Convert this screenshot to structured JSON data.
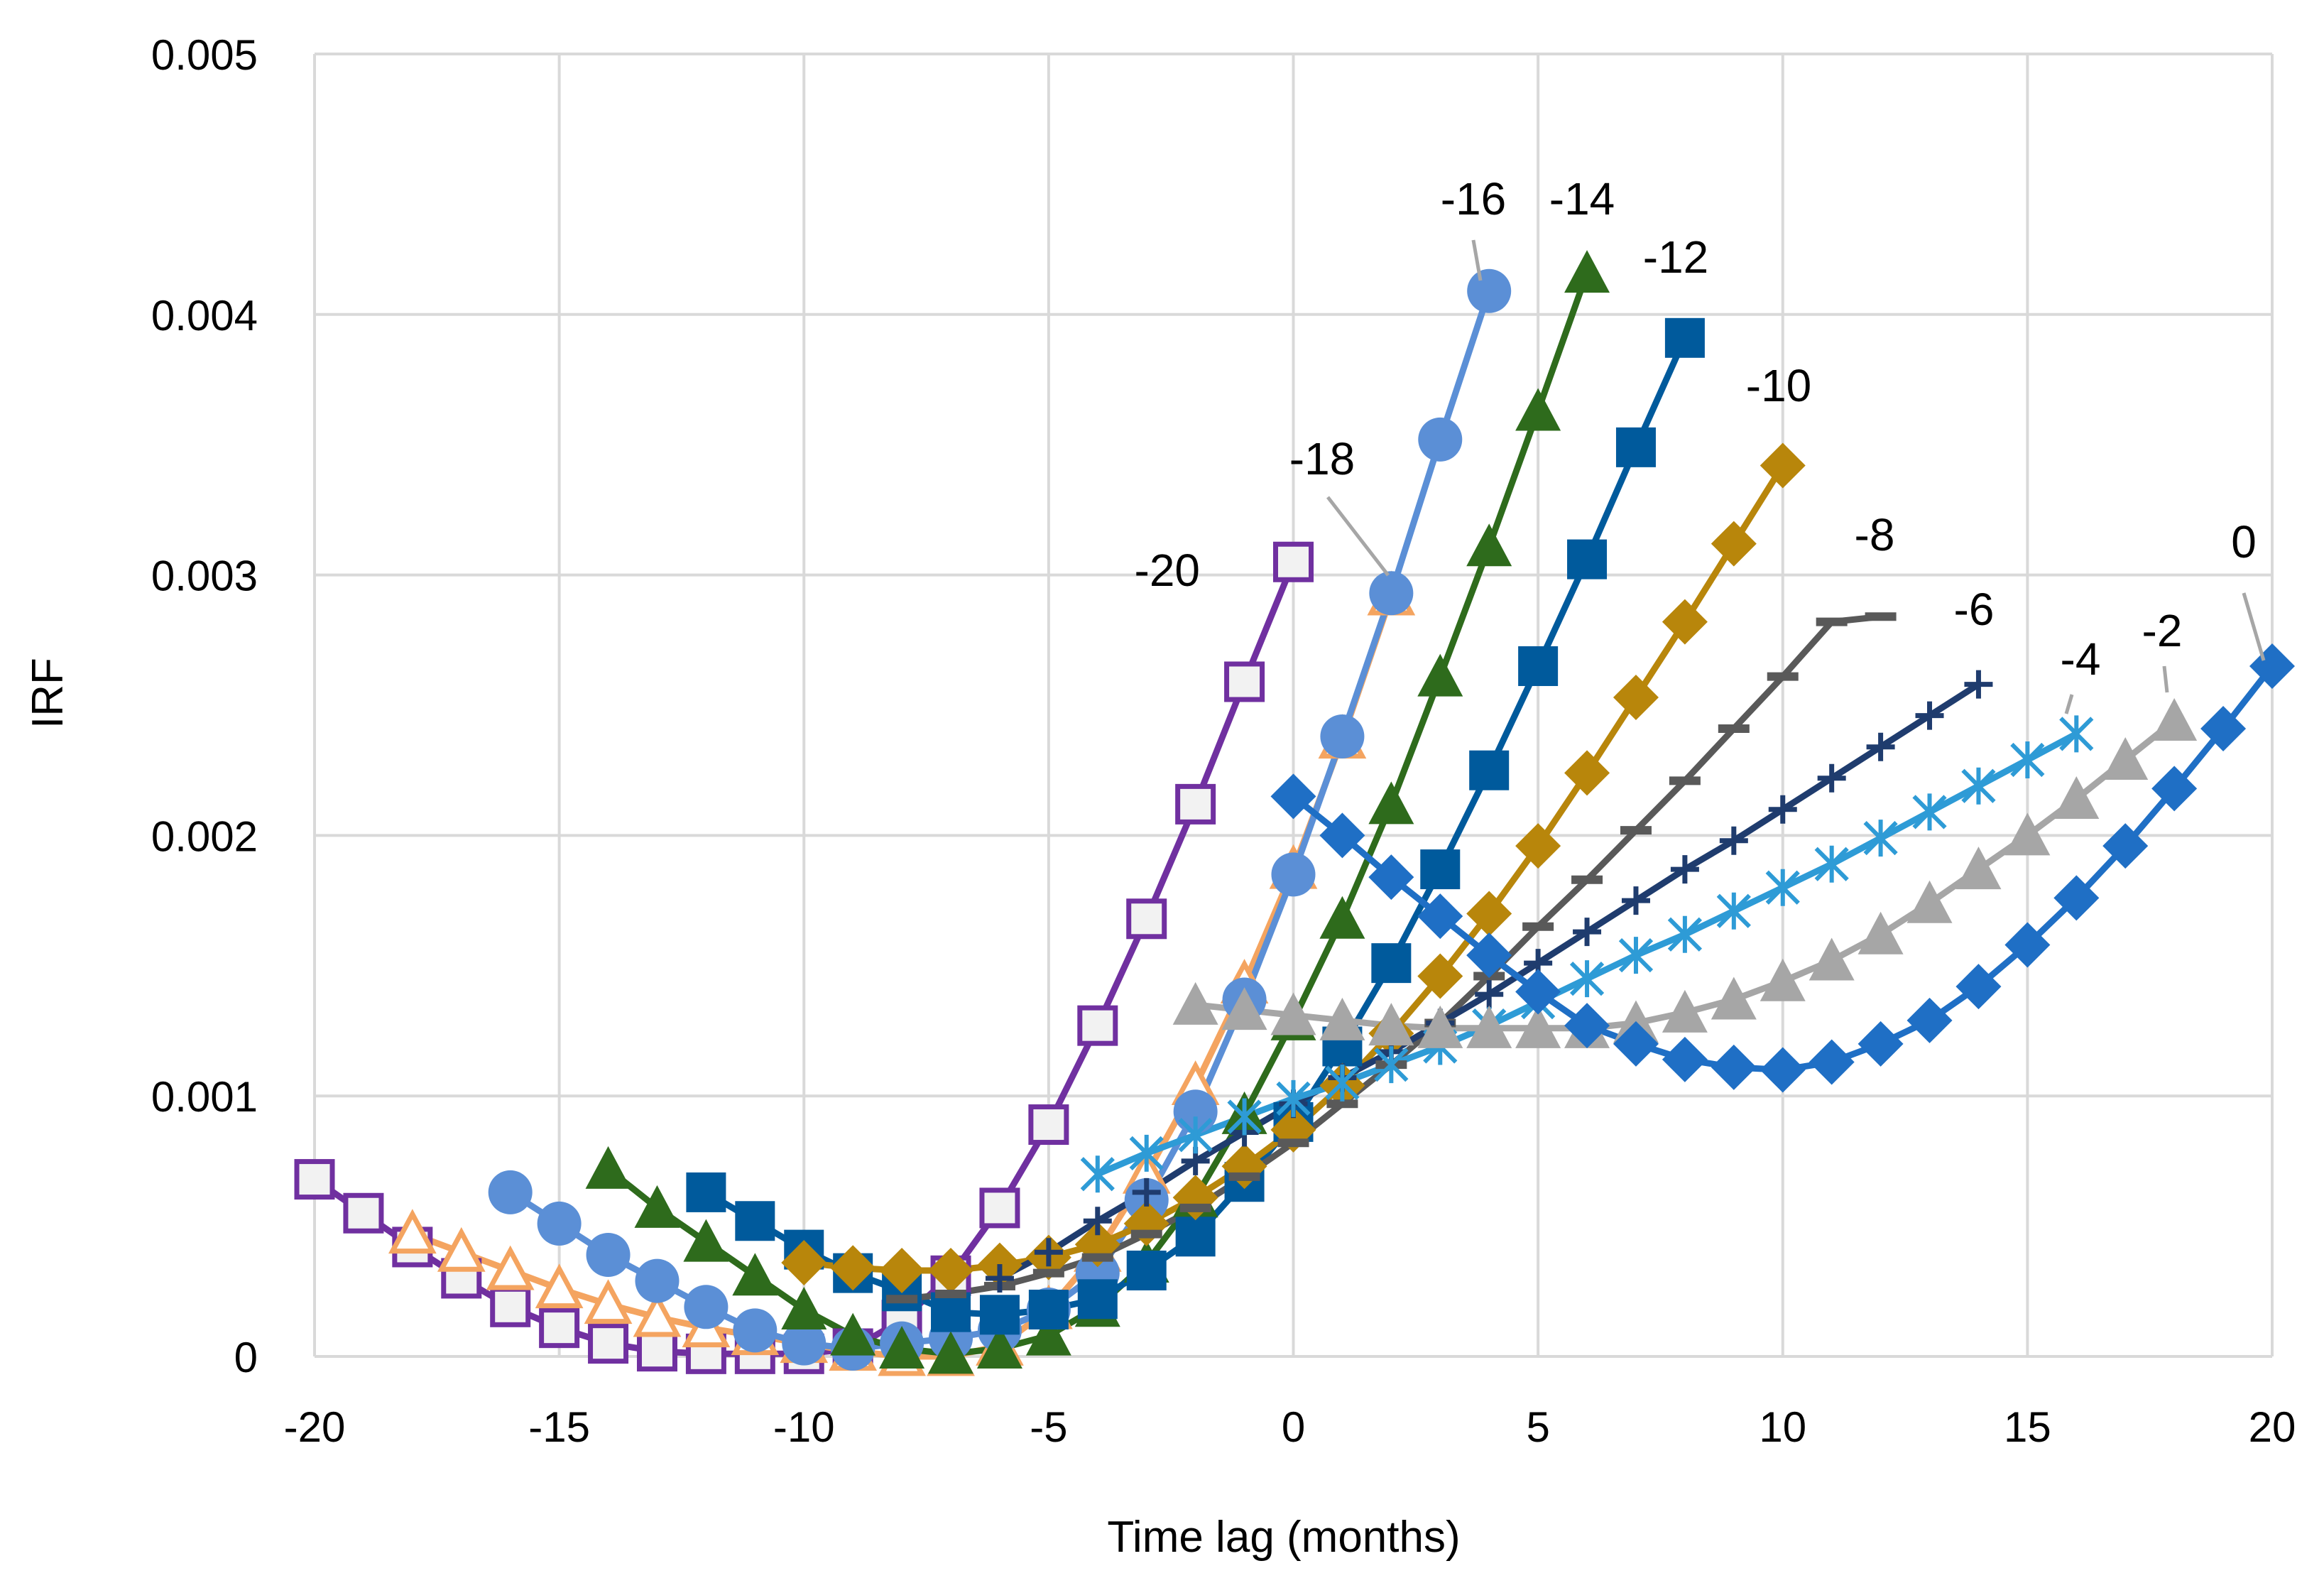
{
  "chart_data": {
    "type": "line",
    "xlabel": "Time lag (months)",
    "ylabel": "IRF",
    "xlim": [
      -20,
      20
    ],
    "ylim": [
      0,
      0.005
    ],
    "xticks": [
      "-20",
      "-15",
      "-10",
      "-5",
      "0",
      "5",
      "10",
      "15",
      "20"
    ],
    "yticks": [
      "0",
      "0.001",
      "0.002",
      "0.003",
      "0.004",
      "0.005"
    ],
    "grid": true,
    "series": [
      {
        "name": "-20",
        "color": "#7030a0",
        "marker": "square-open",
        "x": [
          -20,
          -19,
          -18,
          -17,
          -16,
          -15,
          -14,
          -13,
          -12,
          -11,
          -10,
          -9,
          -8,
          -7,
          -6,
          -5,
          -4,
          -3,
          -2,
          -1,
          0
        ],
        "y": [
          0.00068,
          0.00055,
          0.00042,
          0.0003,
          0.00019,
          0.00011,
          5e-05,
          2e-05,
          1e-05,
          1e-05,
          1e-05,
          3e-05,
          0.00014,
          0.00031,
          0.00057,
          0.00089,
          0.00127,
          0.00168,
          0.00212,
          0.00259,
          0.00305
        ]
      },
      {
        "name": "-18",
        "color": "#f4a460",
        "marker": "triangle-open",
        "x": [
          -18,
          -17,
          -16,
          -15,
          -14,
          -13,
          -12,
          -11,
          -10,
          -9,
          -8,
          -7,
          -6,
          -5,
          -4,
          -3,
          -2,
          -1,
          0,
          1,
          2
        ],
        "y": [
          0.00047,
          0.0004,
          0.00033,
          0.00026,
          0.0002,
          0.00015,
          0.00011,
          8e-05,
          5e-05,
          2e-05,
          0.0,
          0.0,
          4e-05,
          0.00018,
          0.0004,
          0.0007,
          0.00104,
          0.00143,
          0.00187,
          0.00237,
          0.00292
        ]
      },
      {
        "name": "-16",
        "color": "#5b8fd6",
        "marker": "circle",
        "x": [
          -16,
          -15,
          -14,
          -13,
          -12,
          -11,
          -10,
          -9,
          -8,
          -7,
          -6,
          -5,
          -4,
          -3,
          -2,
          -1,
          0,
          1,
          2,
          3,
          4
        ],
        "y": [
          0.00063,
          0.00051,
          0.00039,
          0.00029,
          0.00019,
          0.0001,
          5e-05,
          3e-05,
          5e-05,
          7e-05,
          0.0001,
          0.00018,
          0.00032,
          0.0006,
          0.00094,
          0.00137,
          0.00185,
          0.00238,
          0.00293,
          0.00352,
          0.00409
        ]
      },
      {
        "name": "-14",
        "color": "#2e6b1c",
        "marker": "triangle",
        "x": [
          -14,
          -13,
          -12,
          -11,
          -10,
          -9,
          -8,
          -7,
          -6,
          -5,
          -4,
          -3,
          -2,
          -1,
          0,
          1,
          2,
          3,
          4,
          5,
          6
        ],
        "y": [
          0.00072,
          0.00057,
          0.00044,
          0.00031,
          0.00018,
          8e-05,
          3e-05,
          1e-05,
          3e-05,
          8e-05,
          0.00019,
          0.00036,
          0.00061,
          0.00093,
          0.00129,
          0.00168,
          0.00212,
          0.00261,
          0.00311,
          0.00363,
          0.00416
        ]
      },
      {
        "name": "-12",
        "color": "#005a9c",
        "marker": "square",
        "x": [
          -12,
          -11,
          -10,
          -9,
          -8,
          -7,
          -6,
          -5,
          -4,
          -3,
          -2,
          -1,
          0,
          1,
          2,
          3,
          4,
          5,
          6,
          7,
          8
        ],
        "y": [
          0.00063,
          0.00052,
          0.00041,
          0.00032,
          0.00025,
          0.00017,
          0.00016,
          0.00018,
          0.00022,
          0.00033,
          0.00046,
          0.00067,
          0.0009,
          0.00119,
          0.00151,
          0.00187,
          0.00225,
          0.00265,
          0.00306,
          0.00349,
          0.00391
        ]
      },
      {
        "name": "-10",
        "color": "#b8860b",
        "marker": "diamond",
        "x": [
          -10,
          -9,
          -8,
          -7,
          -6,
          -5,
          -4,
          -3,
          -2,
          -1,
          0,
          1,
          2,
          3,
          4,
          5,
          6,
          7,
          8,
          9,
          10
        ],
        "y": [
          0.00036,
          0.00034,
          0.00033,
          0.00033,
          0.00035,
          0.00038,
          0.00043,
          0.00051,
          0.00061,
          0.00073,
          0.00087,
          0.00104,
          0.00124,
          0.00146,
          0.0017,
          0.00196,
          0.00224,
          0.00253,
          0.00282,
          0.00312,
          0.00342
        ]
      },
      {
        "name": "-8",
        "color": "#595959",
        "marker": "dash",
        "x": [
          -8,
          -7,
          -6,
          -5,
          -4,
          -3,
          -2,
          -1,
          0,
          1,
          2,
          3,
          4,
          5,
          6,
          7,
          8,
          9,
          10,
          11,
          12
        ],
        "y": [
          0.00022,
          0.00024,
          0.00027,
          0.00032,
          0.00038,
          0.00047,
          0.00057,
          0.00069,
          0.00082,
          0.00097,
          0.00112,
          0.00128,
          0.00146,
          0.00165,
          0.00183,
          0.00202,
          0.00221,
          0.00241,
          0.00261,
          0.00282,
          0.00284
        ]
      },
      {
        "name": "-6",
        "color": "#1f3c6e",
        "marker": "plus",
        "x": [
          -6,
          -5,
          -4,
          -3,
          -2,
          -1,
          0,
          1,
          2,
          3,
          4,
          5,
          6,
          7,
          8,
          9,
          10,
          11,
          12,
          13,
          14
        ],
        "y": [
          0.0003,
          0.0004,
          0.00052,
          0.00063,
          0.00075,
          0.00086,
          0.00097,
          0.00107,
          0.00117,
          0.00128,
          0.00139,
          0.00151,
          0.00163,
          0.00175,
          0.00187,
          0.00198,
          0.0021,
          0.00222,
          0.00234,
          0.00246,
          0.00258
        ]
      },
      {
        "name": "-4",
        "color": "#2e9bd6",
        "marker": "asterisk",
        "x": [
          -4,
          -3,
          -2,
          -1,
          0,
          1,
          2,
          3,
          4,
          5,
          6,
          7,
          8,
          9,
          10,
          11,
          12,
          13,
          14,
          15,
          16
        ],
        "y": [
          0.0007,
          0.00078,
          0.00085,
          0.00092,
          0.00099,
          0.00105,
          0.00112,
          0.00119,
          0.00127,
          0.00136,
          0.00145,
          0.00154,
          0.00162,
          0.00171,
          0.0018,
          0.00189,
          0.00199,
          0.00209,
          0.00219,
          0.00229,
          0.00239
        ]
      },
      {
        "name": "-2",
        "color": "#a6a6a6",
        "marker": "triangle",
        "x": [
          -2,
          -1,
          0,
          1,
          2,
          3,
          4,
          5,
          6,
          7,
          8,
          9,
          10,
          11,
          12,
          13,
          14,
          15,
          16,
          17,
          18
        ],
        "y": [
          0.00135,
          0.00133,
          0.00131,
          0.00129,
          0.00127,
          0.00126,
          0.00126,
          0.00126,
          0.00126,
          0.00128,
          0.00132,
          0.00137,
          0.00144,
          0.00152,
          0.00162,
          0.00174,
          0.00187,
          0.002,
          0.00214,
          0.00229,
          0.00244
        ]
      },
      {
        "name": "0",
        "color": "#1f6fc5",
        "marker": "diamond",
        "x": [
          0,
          1,
          2,
          3,
          4,
          5,
          6,
          7,
          8,
          9,
          10,
          11,
          12,
          13,
          14,
          15,
          16,
          17,
          18,
          19,
          20
        ],
        "y": [
          0.00215,
          0.002,
          0.00184,
          0.00169,
          0.00154,
          0.0014,
          0.00127,
          0.0012,
          0.00114,
          0.00111,
          0.0011,
          0.00113,
          0.0012,
          0.00129,
          0.00142,
          0.00158,
          0.00176,
          0.00196,
          0.00218,
          0.00241,
          0.00265
        ]
      }
    ]
  }
}
